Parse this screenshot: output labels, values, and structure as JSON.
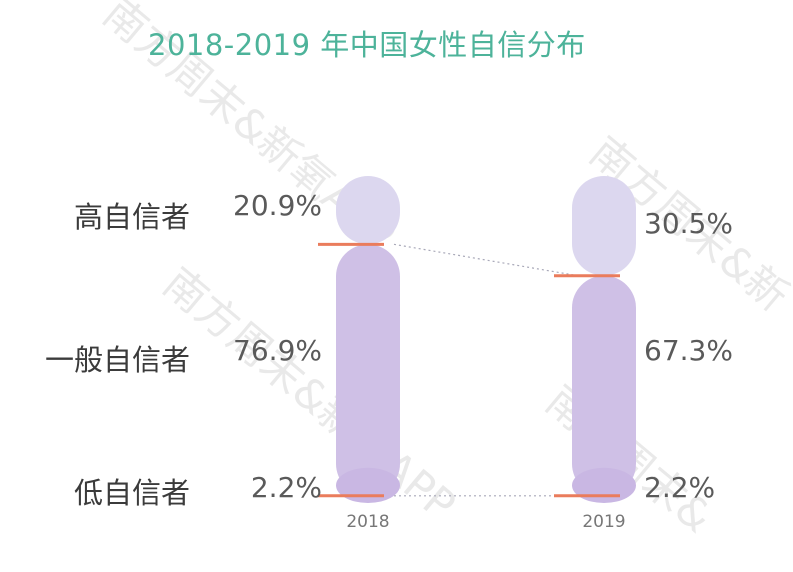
{
  "chart_data": {
    "type": "bar",
    "title": "2018-2019 年中国女性自信分布",
    "categories": [
      "2018",
      "2019"
    ],
    "series": [
      {
        "name": "高自信者",
        "values": [
          20.9,
          30.5
        ]
      },
      {
        "name": "一般自信者",
        "values": [
          76.9,
          67.3
        ]
      },
      {
        "name": "低自信者",
        "values": [
          2.2,
          2.2
        ]
      }
    ],
    "value_labels": [
      [
        "20.9%",
        "30.5%"
      ],
      [
        "76.9%",
        "67.3%"
      ],
      [
        "2.2%",
        "2.2%"
      ]
    ],
    "stacked": true,
    "ylim": [
      0,
      100
    ],
    "unit": "%",
    "colors": {
      "high": "#dcd7ef",
      "middle": "#cfc0e6",
      "low": "#c9b7e3",
      "divider": "#ea7c5c",
      "connector": "#a8a8b8",
      "title": "#4db39a",
      "text": "#3b3b3b",
      "value_text": "#5a5a5a",
      "axis_text": "#777777"
    }
  },
  "watermark": {
    "texts": [
      "南方周末&新氧APP",
      "南方周末&新氧APP",
      "南方周末&新",
      "南方周末&"
    ],
    "color": "#e9e9e9"
  }
}
